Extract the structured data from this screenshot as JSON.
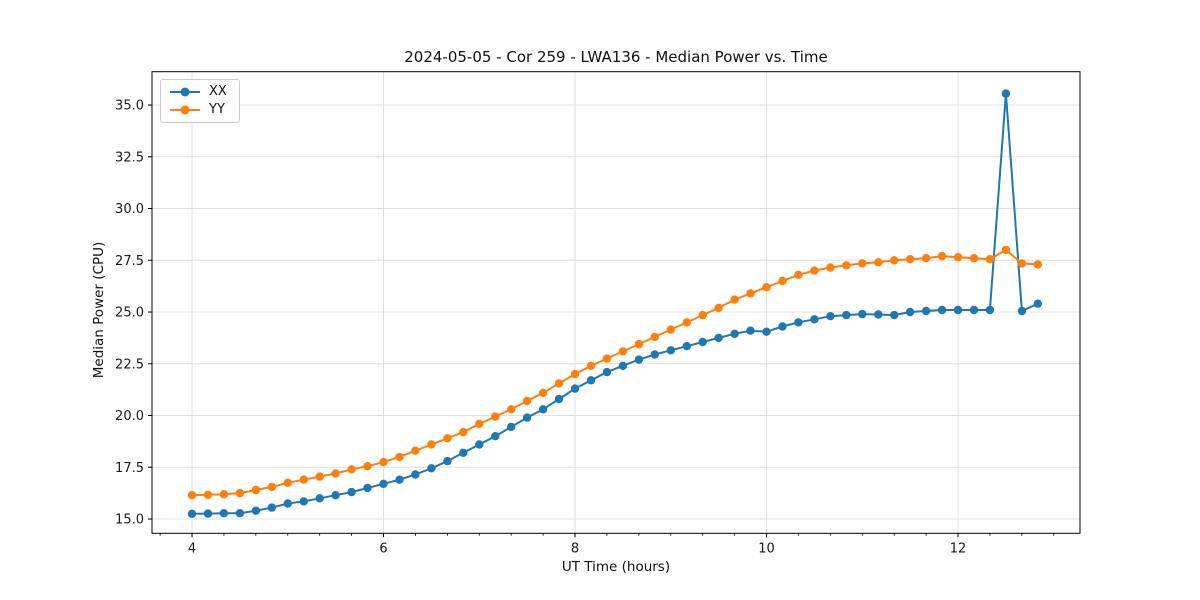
{
  "chart_data": {
    "type": "line",
    "title": "2024-05-05 - Cor 259 - LWA136 - Median Power vs. Time",
    "xlabel": "UT Time (hours)",
    "ylabel": "Median Power (CPU)",
    "xlim": [
      3.582,
      13.274
    ],
    "ylim": [
      14.31,
      36.61
    ],
    "x_ticks": [
      {
        "v": 4,
        "label": "4"
      },
      {
        "v": 6,
        "label": "6"
      },
      {
        "v": 8,
        "label": "8"
      },
      {
        "v": 10,
        "label": "10"
      },
      {
        "v": 12,
        "label": "12"
      }
    ],
    "y_ticks": [
      {
        "v": 15,
        "label": "15.0"
      },
      {
        "v": 17.5,
        "label": "17.5"
      },
      {
        "v": 20,
        "label": "20.0"
      },
      {
        "v": 22.5,
        "label": "22.5"
      },
      {
        "v": 25,
        "label": "25.0"
      },
      {
        "v": 27.5,
        "label": "27.5"
      },
      {
        "v": 30,
        "label": "30.0"
      },
      {
        "v": 32.5,
        "label": "32.5"
      },
      {
        "v": 35,
        "label": "35.0"
      }
    ],
    "x_minor_step": 0.3333333,
    "grid": true,
    "legend_position": "upper-left",
    "x": [
      4.0,
      4.167,
      4.333,
      4.5,
      4.667,
      4.833,
      5.0,
      5.167,
      5.333,
      5.5,
      5.667,
      5.833,
      6.0,
      6.167,
      6.333,
      6.5,
      6.667,
      6.833,
      7.0,
      7.167,
      7.333,
      7.5,
      7.667,
      7.833,
      8.0,
      8.167,
      8.333,
      8.5,
      8.667,
      8.833,
      9.0,
      9.167,
      9.333,
      9.5,
      9.667,
      9.833,
      10.0,
      10.167,
      10.333,
      10.5,
      10.667,
      10.833,
      11.0,
      11.167,
      11.333,
      11.5,
      11.667,
      11.833,
      12.0,
      12.167,
      12.333,
      12.5,
      12.667,
      12.833
    ],
    "series": [
      {
        "name": "XX",
        "color": "#1f77b4",
        "values": [
          15.25,
          15.26,
          15.28,
          15.28,
          15.4,
          15.55,
          15.75,
          15.85,
          16.0,
          16.15,
          16.3,
          16.5,
          16.7,
          16.9,
          17.15,
          17.45,
          17.8,
          18.2,
          18.6,
          19.0,
          19.45,
          19.9,
          20.3,
          20.8,
          21.3,
          21.7,
          22.1,
          22.4,
          22.7,
          22.95,
          23.15,
          23.35,
          23.55,
          23.75,
          23.95,
          24.1,
          24.05,
          24.3,
          24.5,
          24.65,
          24.8,
          24.85,
          24.9,
          24.88,
          24.85,
          25.0,
          25.05,
          25.1,
          25.1,
          25.1,
          25.1,
          35.55,
          25.05,
          25.4
        ]
      },
      {
        "name": "YY",
        "color": "#ff7f0e",
        "values": [
          16.15,
          16.17,
          16.2,
          16.25,
          16.4,
          16.55,
          16.75,
          16.9,
          17.05,
          17.2,
          17.4,
          17.55,
          17.75,
          18.0,
          18.3,
          18.6,
          18.9,
          19.2,
          19.6,
          19.95,
          20.3,
          20.7,
          21.1,
          21.55,
          22.0,
          22.4,
          22.75,
          23.1,
          23.45,
          23.8,
          24.15,
          24.5,
          24.85,
          25.2,
          25.6,
          25.9,
          26.2,
          26.5,
          26.8,
          27.0,
          27.15,
          27.25,
          27.35,
          27.4,
          27.5,
          27.55,
          27.6,
          27.7,
          27.65,
          27.6,
          27.55,
          28.0,
          27.35,
          27.3
        ]
      }
    ],
    "style_colors": {
      "grid": "#e0e0e0",
      "spine": "#000000",
      "tick_text": "#1a1a1a",
      "background": "#ffffff"
    }
  }
}
